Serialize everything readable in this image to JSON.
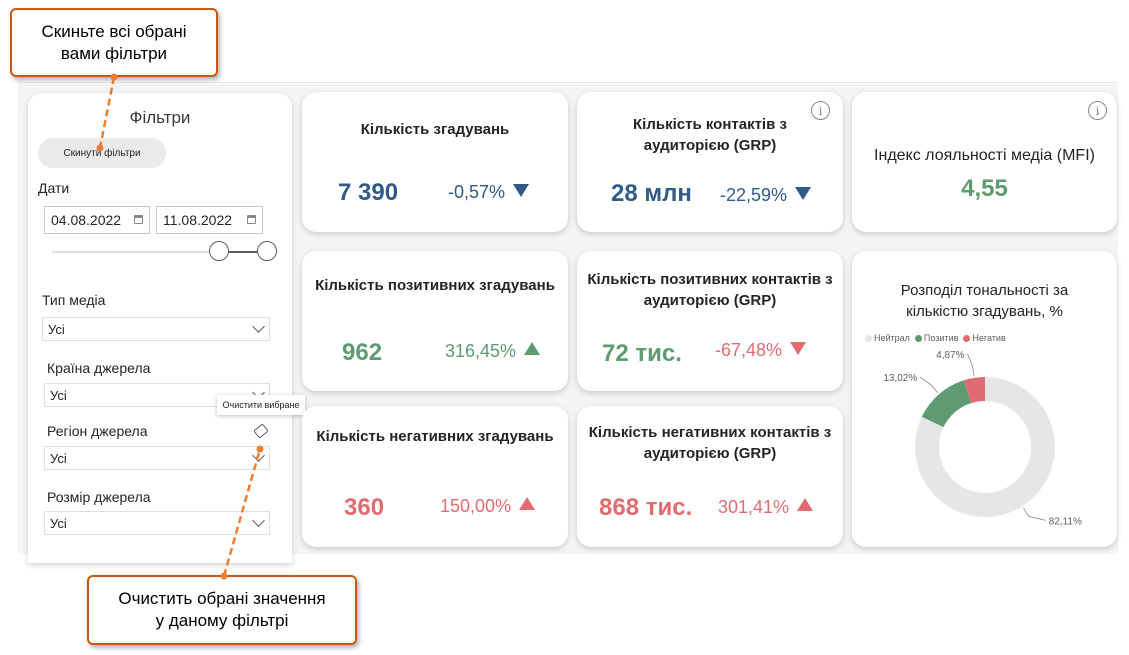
{
  "callouts": {
    "reset": "Скиньте всі обрані\nвами фільтри",
    "clear": "Очистить обрані значення\nу даному фільтрі"
  },
  "filters": {
    "title": "Фільтри",
    "reset_button": "Скинути фільтри",
    "dates_label": "Дати",
    "date_from": "04.08.2022",
    "date_to": "11.08.2022",
    "media_type_label": "Тип медіа",
    "media_type_value": "Усі",
    "country_label": "Країна джерела",
    "country_value": "Усі",
    "region_label": "Регіон джерела",
    "region_value": "Усі",
    "size_label": "Розмір джерела",
    "size_value": "Усі",
    "tooltip": "Очистити вибране"
  },
  "kpis": {
    "mentions": {
      "title": "Кількість згадувань",
      "value": "7 390",
      "change": "-0,57%"
    },
    "grp": {
      "title": "Кількість контактів з аудиторією (GRP)",
      "value": "28 млн",
      "change": "-22,59%"
    },
    "mfi": {
      "title": "Індекс лояльності медіа (MFI)",
      "value": "4,55"
    },
    "pos_mentions": {
      "title": "Кількість позитивних згадувань",
      "value": "962",
      "change": "316,45%"
    },
    "pos_grp": {
      "title": "Кількість позитивних контактів з аудиторією (GRP)",
      "value": "72 тис.",
      "change": "-67,48%"
    },
    "neg_mentions": {
      "title": "Кількість негативних згадувань",
      "value": "360",
      "change": "150,00%"
    },
    "neg_grp": {
      "title": "Кількість негативних контактів з аудиторією (GRP)",
      "value": "868 тис.",
      "change": "301,41%"
    }
  },
  "colors": {
    "blue": "#2f5b86",
    "green": "#5e9b71",
    "red": "#e06c72",
    "neutral": "#e6e6e6",
    "callout_border": "#c55a11"
  },
  "chart_data": {
    "type": "pie",
    "title": "Розподіл тональності за кількістю згадувань, %",
    "categories": [
      "Нейтрал",
      "Позитив",
      "Негатив"
    ],
    "values": [
      82.11,
      13.02,
      4.87
    ],
    "labels": [
      "82,11%",
      "13,02%",
      "4,87%"
    ],
    "colors": [
      "#e6e6e6",
      "#5e9b71",
      "#e06c72"
    ],
    "legend": "top-left"
  }
}
